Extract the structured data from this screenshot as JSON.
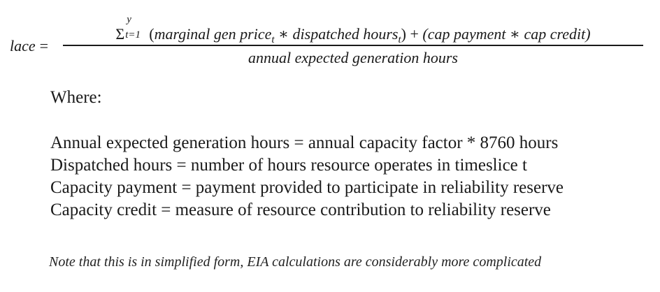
{
  "formula": {
    "lhs": "lace",
    "equals": "=",
    "numerator": {
      "sigma": "Σ",
      "upper_limit": "y",
      "lower_limit": "t=1",
      "open_paren": "(",
      "term1_text": "marginal gen price",
      "term1_sub": "t",
      "times1": "∗",
      "term2_text": "dispatched hours",
      "term2_sub": "t",
      "close_paren": ")",
      "plus": "+",
      "term3_text": "(cap payment",
      "times2": "∗",
      "term4_text": "cap credit)"
    },
    "denominator": "annual expected generation hours"
  },
  "where_label": "Where:",
  "definitions": [
    "Annual expected generation hours = annual capacity factor * 8760 hours",
    "Dispatched hours = number of hours resource operates in timeslice t",
    "Capacity payment = payment provided to participate in reliability reserve",
    "Capacity credit = measure of resource contribution to reliability reserve"
  ],
  "note": "Note that this is in simplified form, EIA calculations are considerably more complicated"
}
